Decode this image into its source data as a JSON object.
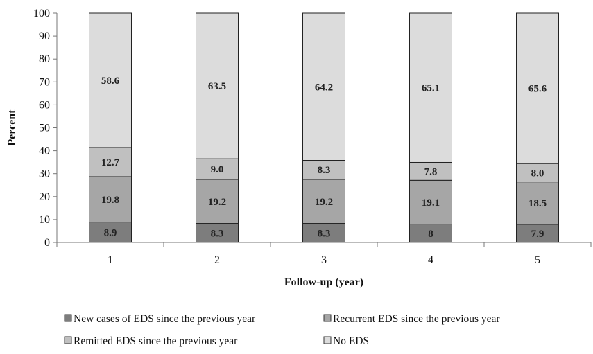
{
  "chart_data": {
    "type": "bar",
    "stacked": true,
    "categories": [
      "1",
      "2",
      "3",
      "4",
      "5"
    ],
    "series": [
      {
        "name": "New cases of EDS since the previous year",
        "values": [
          8.9,
          8.3,
          8.3,
          8,
          7.9
        ],
        "labels": [
          "8.9",
          "8.3",
          "8.3",
          "8",
          "7.9"
        ],
        "color": "#7d7d7d"
      },
      {
        "name": "Recurrent EDS since the previous year",
        "values": [
          19.8,
          19.2,
          19.2,
          19.1,
          18.5
        ],
        "labels": [
          "19.8",
          "19.2",
          "19.2",
          "19.1",
          "18.5"
        ],
        "color": "#a6a6a6"
      },
      {
        "name": "Remitted EDS since the previous year",
        "values": [
          12.7,
          9.0,
          8.3,
          7.8,
          8.0
        ],
        "labels": [
          "12.7",
          "9.0",
          "8.3",
          "7.8",
          "8.0"
        ],
        "color": "#c0c0c0"
      },
      {
        "name": "No EDS",
        "values": [
          58.6,
          63.5,
          64.2,
          65.1,
          65.6
        ],
        "labels": [
          "58.6",
          "63.5",
          "64.2",
          "65.1",
          "65.6"
        ],
        "color": "#dcdcdc"
      }
    ],
    "xlabel": "Follow-up  (year)",
    "ylabel": "Percent",
    "ylim": [
      0,
      100
    ],
    "yticks": [
      "0",
      "10",
      "20",
      "30",
      "40",
      "50",
      "60",
      "70",
      "80",
      "90",
      "100"
    ],
    "grid": false,
    "legend_position": "bottom"
  }
}
